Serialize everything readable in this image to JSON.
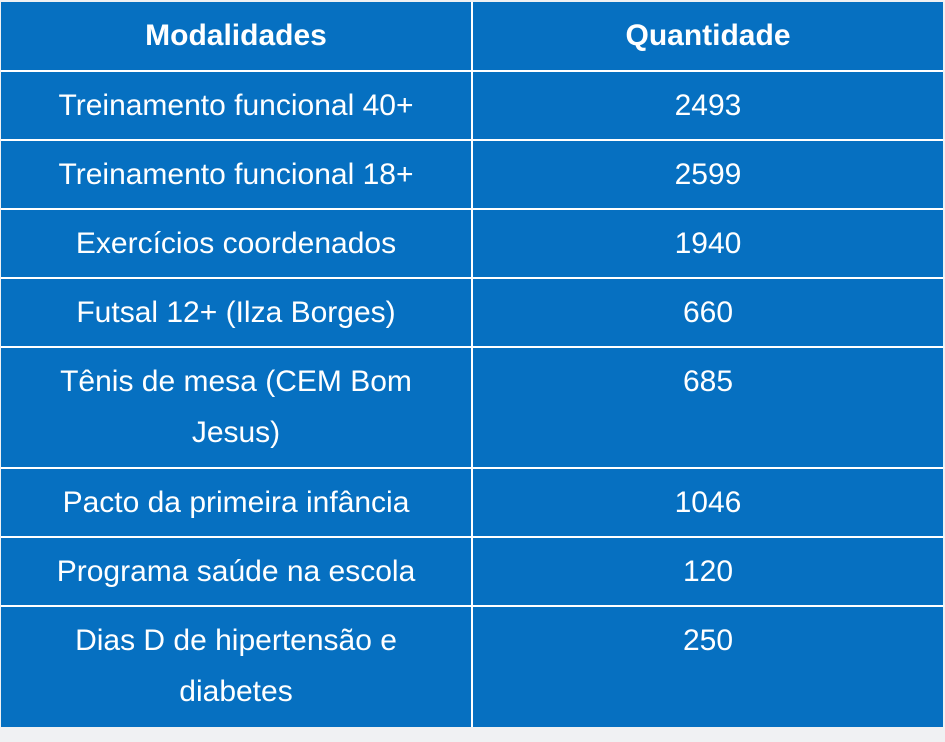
{
  "table": {
    "headers": [
      "Modalidades",
      "Quantidade"
    ],
    "rows": [
      {
        "modalidade": "Treinamento funcional 40+",
        "quantidade": "2493"
      },
      {
        "modalidade": "Treinamento funcional 18+",
        "quantidade": "2599"
      },
      {
        "modalidade": "Exercícios coordenados",
        "quantidade": "1940"
      },
      {
        "modalidade": "Futsal 12+ (Ilza Borges)",
        "quantidade": "660"
      },
      {
        "modalidade": "Tênis de mesa (CEM Bom Jesus)",
        "quantidade": "685"
      },
      {
        "modalidade": "Pacto da primeira infância",
        "quantidade": "1046"
      },
      {
        "modalidade": "Programa saúde na escola",
        "quantidade": "120"
      },
      {
        "modalidade": "Dias D de hipertensão e diabetes",
        "quantidade": "250"
      }
    ]
  },
  "colors": {
    "cell_background": "#0670c1",
    "grid_lines": "#ffffff",
    "text": "#ffffff",
    "page_background": "#f0f1f3"
  }
}
